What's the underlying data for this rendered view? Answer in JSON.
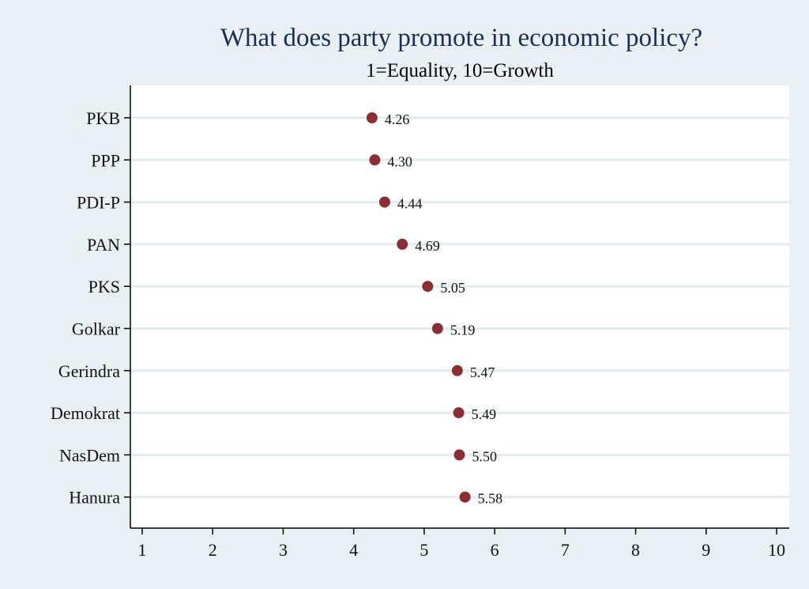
{
  "chart_data": {
    "type": "dot",
    "title": "What does party promote in economic policy?",
    "subtitle": "1=Equality, 10=Growth",
    "categories": [
      "PKB",
      "PPP",
      "PDI-P",
      "PAN",
      "PKS",
      "Golkar",
      "Gerindra",
      "Demokrat",
      "NasDem",
      "Hanura"
    ],
    "values": [
      4.26,
      4.3,
      4.44,
      4.69,
      5.05,
      5.19,
      5.47,
      5.49,
      5.5,
      5.58
    ],
    "value_labels": [
      "4.26",
      "4.30",
      "4.44",
      "4.69",
      "5.05",
      "5.19",
      "5.47",
      "5.49",
      "5.50",
      "5.58"
    ],
    "xlim": [
      1,
      10
    ],
    "xticks": [
      1,
      2,
      3,
      4,
      5,
      6,
      7,
      8,
      9,
      10
    ],
    "xlabel": "",
    "ylabel": "",
    "grid": true,
    "colors": {
      "background": "#e8f0f3",
      "plot_background": "#ffffff",
      "marker": "#8b2e34",
      "gridline": "#e3ebee",
      "axis": "#000000",
      "title": "#1a2f55"
    }
  }
}
